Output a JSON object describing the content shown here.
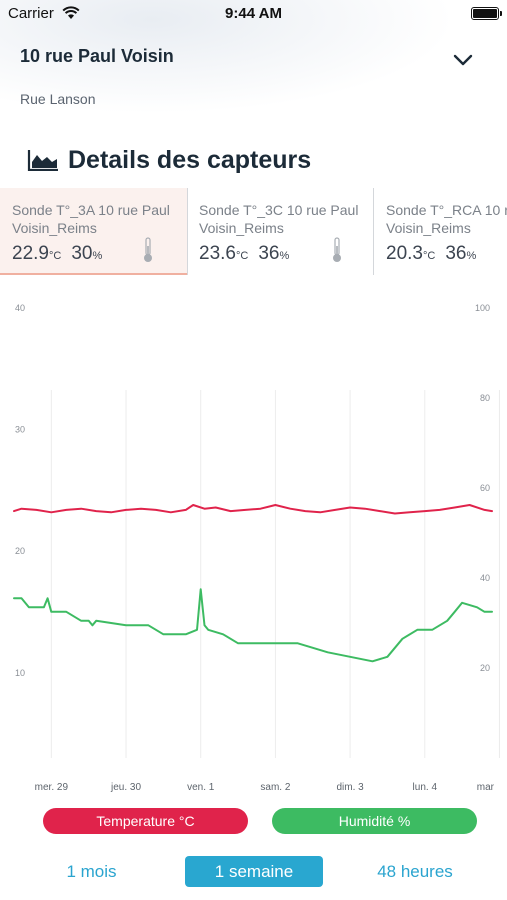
{
  "status_bar": {
    "carrier": "Carrier",
    "time": "9:44 AM"
  },
  "header": {
    "title": "10 rue Paul Voisin",
    "subtitle": "Rue Lanson"
  },
  "section": {
    "title": "Details des capteurs"
  },
  "sensors": [
    {
      "name_line1": "Sonde T°_3A 10 rue Paul",
      "name_line2": "Voisin_Reims",
      "temp": "22.9",
      "temp_unit": "°C",
      "hum": "30",
      "hum_unit": "%",
      "selected": true
    },
    {
      "name_line1": "Sonde T°_3C 10 rue Paul",
      "name_line2": "Voisin_Reims",
      "temp": "23.6",
      "temp_unit": "°C",
      "hum": "36",
      "hum_unit": "%",
      "selected": false
    },
    {
      "name_line1": "Sonde T°_RCA 10 r",
      "name_line2": "Voisin_Reims",
      "temp": "20.3",
      "temp_unit": "°C",
      "hum": "36",
      "hum_unit": "%",
      "selected": false
    }
  ],
  "chart_data": {
    "type": "line",
    "title": "",
    "x_tick_labels": [
      "mer. 29",
      "jeu. 30",
      "ven. 1",
      "sam. 2",
      "dim. 3",
      "lun. 4",
      "mar"
    ],
    "x_range_days": [
      0,
      6.4
    ],
    "y_left": {
      "ticks": [
        10,
        20,
        30,
        40
      ],
      "range": [
        3,
        40
      ]
    },
    "y_right": {
      "ticks": [
        20,
        40,
        60,
        80,
        100
      ],
      "range": [
        0,
        100
      ]
    },
    "grid": "vertical",
    "series": [
      {
        "name": "Temperature °C",
        "axis": "left",
        "color": "#e0234b",
        "x": [
          0,
          0.1,
          0.3,
          0.5,
          0.7,
          0.9,
          1.1,
          1.3,
          1.5,
          1.7,
          1.9,
          2.1,
          2.3,
          2.4,
          2.55,
          2.7,
          2.9,
          3.1,
          3.3,
          3.5,
          3.7,
          3.9,
          4.1,
          4.3,
          4.5,
          4.7,
          4.9,
          5.1,
          5.3,
          5.5,
          5.7,
          5.9,
          6.1,
          6.3,
          6.4
        ],
        "values": [
          23.3,
          23.5,
          23.4,
          23.2,
          23.4,
          23.5,
          23.3,
          23.2,
          23.4,
          23.5,
          23.4,
          23.2,
          23.4,
          23.8,
          23.5,
          23.6,
          23.3,
          23.4,
          23.5,
          23.8,
          23.5,
          23.3,
          23.2,
          23.4,
          23.6,
          23.5,
          23.3,
          23.1,
          23.2,
          23.3,
          23.4,
          23.6,
          23.8,
          23.4,
          23.3
        ]
      },
      {
        "name": "Humidité %",
        "axis": "right",
        "color": "#3dbb62",
        "x": [
          0,
          0.1,
          0.2,
          0.4,
          0.45,
          0.5,
          0.7,
          0.9,
          1.0,
          1.05,
          1.1,
          1.5,
          1.8,
          2.0,
          2.3,
          2.45,
          2.5,
          2.55,
          2.6,
          2.8,
          3.0,
          3.2,
          3.5,
          3.8,
          4.0,
          4.2,
          4.5,
          4.8,
          5.0,
          5.1,
          5.2,
          5.4,
          5.6,
          5.8,
          5.9,
          6.0,
          6.2,
          6.3,
          6.4
        ],
        "values": [
          35.5,
          35.5,
          33.5,
          33.5,
          35.5,
          32.5,
          32.5,
          30.5,
          30.5,
          29.5,
          30.5,
          29.5,
          29.5,
          27.5,
          27.5,
          28.5,
          37.5,
          29.5,
          28.5,
          27.5,
          25.5,
          25.5,
          25.5,
          25.5,
          24.5,
          23.5,
          22.5,
          21.5,
          22.5,
          24.5,
          26.5,
          28.5,
          28.5,
          30.5,
          32.5,
          34.5,
          33.5,
          32.5,
          32.5
        ]
      }
    ]
  },
  "legend": {
    "temperature": "Temperature °C",
    "humidity": "Humidité %"
  },
  "ranges": {
    "month": "1 mois",
    "week": "1 semaine",
    "hours48": "48 heures"
  },
  "colors": {
    "accent": "#29a7d0",
    "temperature": "#e0234b",
    "humidity": "#3dbb62"
  }
}
